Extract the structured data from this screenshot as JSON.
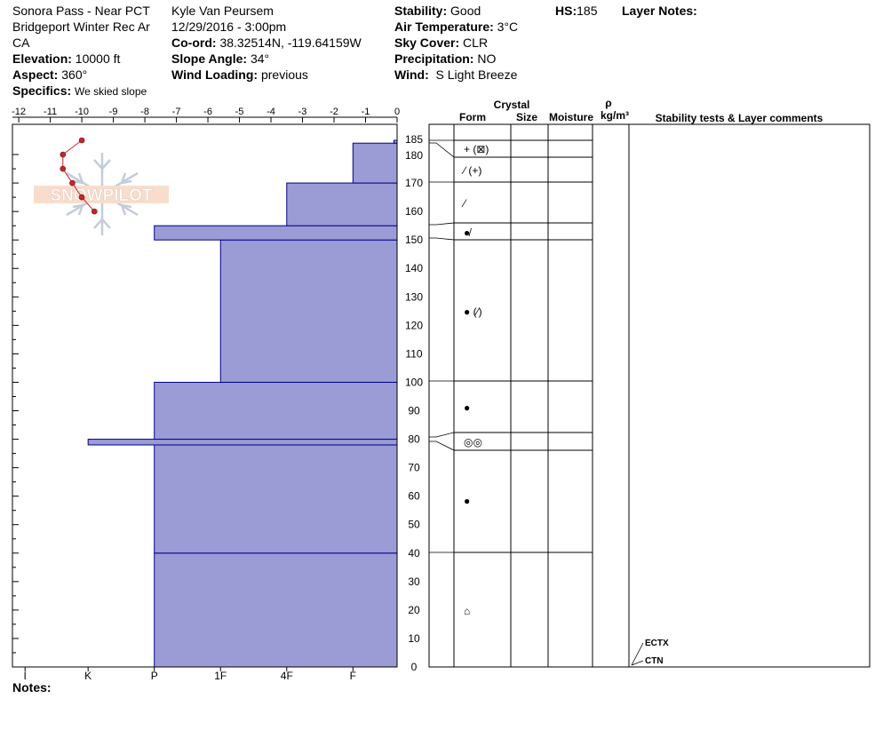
{
  "header": {
    "location_line1": "Sonora Pass - Near PCT",
    "location_line2": "Bridgeport Winter Rec Ar",
    "location_line3": "CA",
    "elevation_label": "Elevation:",
    "elevation_value": "10000 ft",
    "aspect_label": "Aspect:",
    "aspect_value": "360°",
    "specifics_label": "Specifics:",
    "specifics_value": "We skied slope",
    "observer": "Kyle Van Peursem",
    "datetime": "12/29/2016 - 3:00pm",
    "coord_label": "Co-ord:",
    "coord_value": "38.32514N, -119.64159W",
    "slope_label": "Slope Angle:",
    "slope_value": "34°",
    "wind_loading_label": "Wind Loading:",
    "wind_loading_value": "previous",
    "stability_label": "Stability:",
    "stability_value": "Good",
    "air_temp_label": "Air Temperature:",
    "air_temp_value": "3°C",
    "sky_label": "Sky Cover:",
    "sky_value": "CLR",
    "precip_label": "Precipitation:",
    "precip_value": "NO",
    "wind_label": "Wind:",
    "wind_value": "S Light Breeze",
    "hs_label": "HS:",
    "hs_value": "185",
    "layer_notes_label": "Layer Notes:"
  },
  "footer": {
    "notes_label": "Notes:"
  },
  "logo": {
    "text": "SNOWPILOT"
  },
  "colors": {
    "fill": "#9b9bd6",
    "edge": "#00008b",
    "temp": "#c0282e",
    "axis": "#000000"
  },
  "chart_data": {
    "type": "snow_profile",
    "top_axis": {
      "label": "temperature",
      "ticks": [
        "-12",
        "-11",
        "-10",
        "-9",
        "-8",
        "-7",
        "-6",
        "-5",
        "-4",
        "-3",
        "-2",
        "-1",
        "0"
      ],
      "range": [
        -12.2,
        0
      ]
    },
    "bottom_axis": {
      "ticks": [
        "I",
        "K",
        "P",
        "1F",
        "4F",
        "F"
      ]
    },
    "height_axis": {
      "ticks": [
        "185",
        "180",
        "170",
        "160",
        "150",
        "140",
        "130",
        "120",
        "110",
        "100",
        "90",
        "80",
        "70",
        "60",
        "50",
        "40",
        "30",
        "20",
        "10",
        "0"
      ],
      "range": [
        0,
        185
      ]
    },
    "hardness_layers": [
      {
        "bottom": 0,
        "top": 40,
        "hardness_value": -7.7
      },
      {
        "bottom": 40,
        "top": 78,
        "hardness_value": -7.7
      },
      {
        "bottom": 78,
        "top": 80,
        "hardness_value": -9.8
      },
      {
        "bottom": 80,
        "top": 100,
        "hardness_value": -7.7
      },
      {
        "bottom": 100,
        "top": 150,
        "hardness_value": -5.6
      },
      {
        "bottom": 150,
        "top": 155,
        "hardness_value": -7.7
      },
      {
        "bottom": 155,
        "top": 170,
        "hardness_value": -3.5
      },
      {
        "bottom": 170,
        "top": 184,
        "hardness_value": -1.4
      },
      {
        "bottom": 184,
        "top": 185,
        "hardness_value": -0.1
      }
    ],
    "temperature_profile": [
      {
        "height": 185,
        "temp": -10.0
      },
      {
        "height": 180,
        "temp": -10.6
      },
      {
        "height": 175,
        "temp": -10.6
      },
      {
        "height": 170,
        "temp": -10.3
      },
      {
        "height": 165,
        "temp": -10.0
      },
      {
        "height": 160,
        "temp": -9.6
      }
    ],
    "columns": {
      "crystal": "Crystal",
      "form": "Form",
      "size": "Size",
      "moisture": "Moisture",
      "rho": "ρ",
      "density_unit": "kg/m³",
      "comments": "Stability tests & Layer comments"
    },
    "layer_rows": [
      {
        "top": 185,
        "bottom": 184,
        "form": ""
      },
      {
        "top": 184,
        "bottom": 178,
        "form": "+ (⊠)"
      },
      {
        "top": 178,
        "bottom": 170,
        "form": "⁄ (+)"
      },
      {
        "top": 170,
        "bottom": 155,
        "form": "⁄"
      },
      {
        "top": 155,
        "bottom": 150,
        "form": "●̸"
      },
      {
        "top": 150,
        "bottom": 100,
        "form": "● (⁄)"
      },
      {
        "top": 100,
        "bottom": 82,
        "form": "●"
      },
      {
        "top": 82,
        "bottom": 76,
        "form": "◎◎"
      },
      {
        "top": 76,
        "bottom": 40,
        "form": "●"
      },
      {
        "top": 40,
        "bottom": 0,
        "form": "⌂"
      }
    ],
    "tests": [
      {
        "label": "ECTX",
        "height": 0
      },
      {
        "label": "CTN",
        "height": 0
      }
    ]
  }
}
